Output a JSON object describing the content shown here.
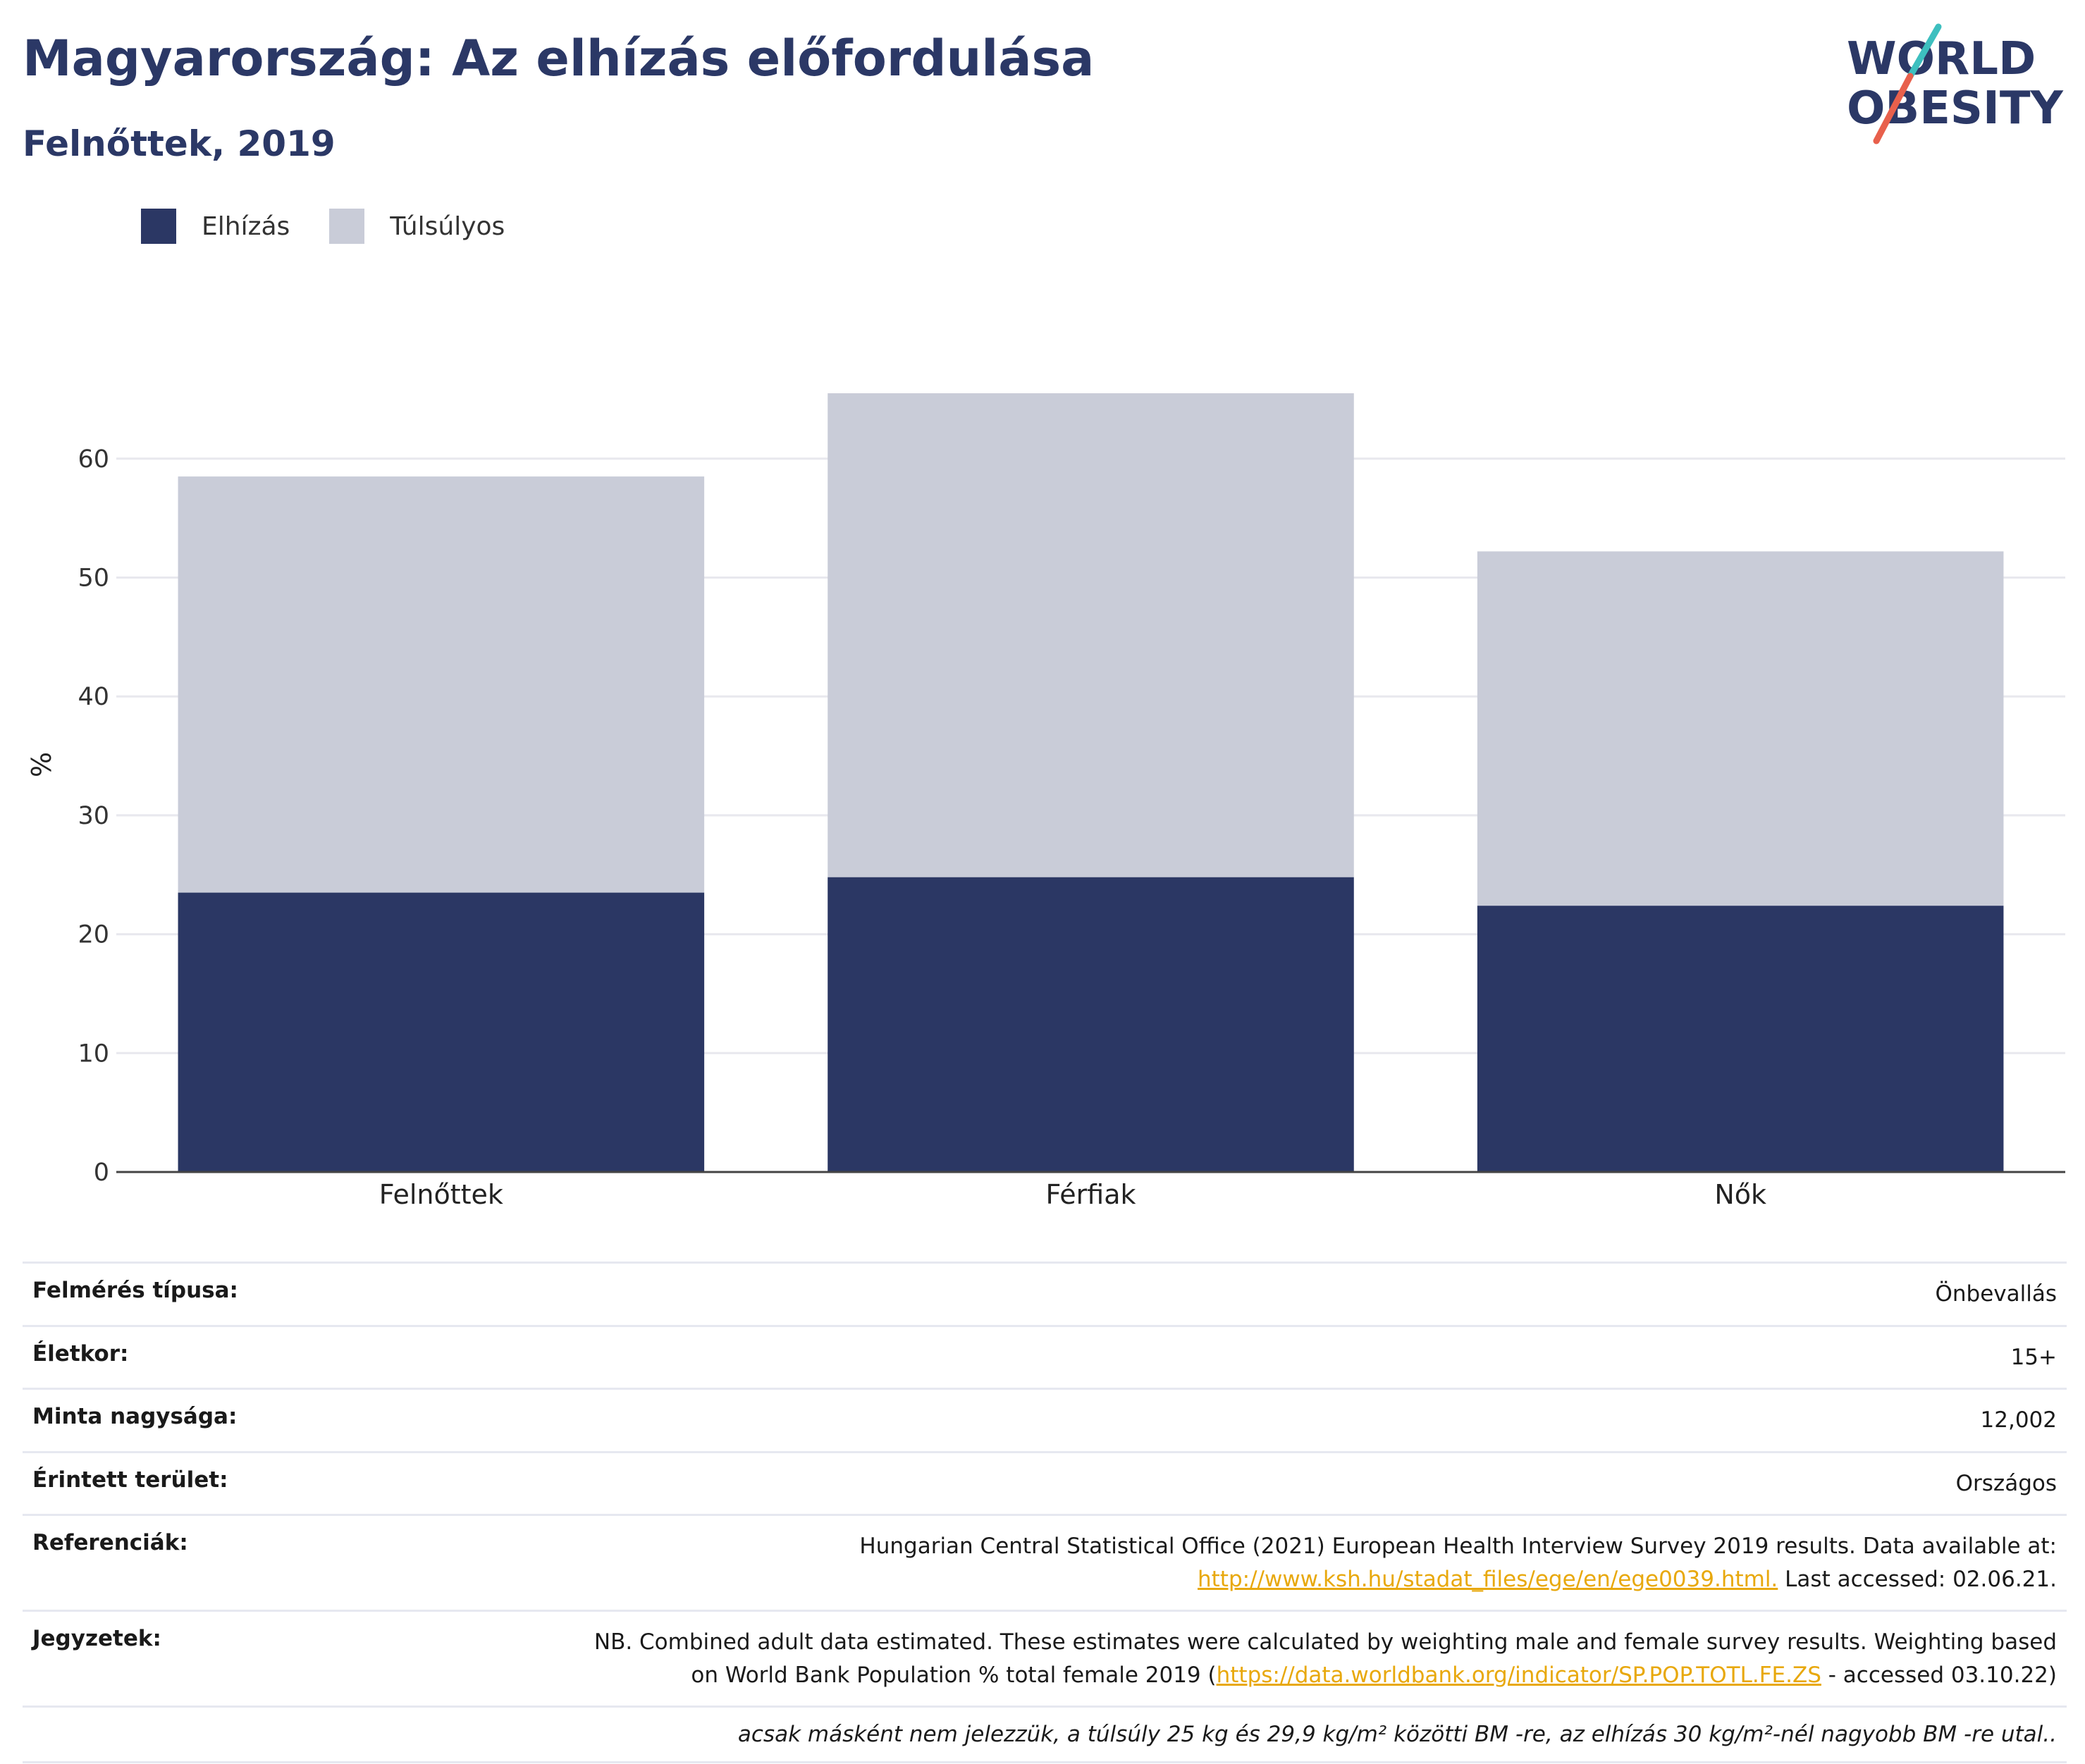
{
  "header": {
    "title": "Magyarország: Az elhízás előfordulása",
    "subtitle": "Felnőttek, 2019",
    "logo_text_line1": "WORLD",
    "logo_text_line2": "OBESITY"
  },
  "legend": [
    {
      "label": "Elhízás",
      "color": "#2b3764"
    },
    {
      "label": "Túlsúlyos",
      "color": "#c9ccd8"
    }
  ],
  "chart_data": {
    "type": "bar",
    "stacked": true,
    "categories": [
      "Felnőttek",
      "Férfiak",
      "Nők"
    ],
    "series": [
      {
        "name": "Elhízás",
        "values": [
          23.5,
          24.8,
          22.4
        ],
        "color": "#2b3764"
      },
      {
        "name": "Túlsúlyos",
        "values": [
          35.0,
          40.7,
          29.8
        ],
        "color": "#c9ccd8"
      }
    ],
    "ylabel": "%",
    "yticks": [
      0,
      10,
      20,
      30,
      40,
      50,
      60
    ],
    "ylim": [
      0,
      70
    ],
    "grid": true,
    "legend_position": "top-left"
  },
  "meta": {
    "survey_type": {
      "label": "Felmérés típusa:",
      "value": "Önbevallás"
    },
    "age": {
      "label": "Életkor:",
      "value": "15+"
    },
    "sample_size": {
      "label": "Minta nagysága:",
      "value": "12,002"
    },
    "area": {
      "label": "Érintett terület:",
      "value": "Országos"
    },
    "references": {
      "label": "Referenciák:",
      "text1": "Hungarian Central Statistical Office (2021) European Health Interview Survey 2019 results. Data available at:",
      "link": "http://www.ksh.hu/stadat_files/ege/en/ege0039.html.",
      "text2": " Last accessed: 02.06.21."
    },
    "notes": {
      "label": "Jegyzetek:",
      "text1": "NB. Combined adult data estimated. These estimates were calculated by weighting male and female survey results. Weighting based",
      "text2a": "on World Bank Population % total female 2019 (",
      "link": "https://data.worldbank.org/indicator/SP.POP.TOTL.FE.ZS",
      "text2b": " - accessed 03.10.22)"
    },
    "footnote": "acsak másként nem jelezzük, a túlsúly 25 kg és 29,9 kg/m² közötti BM -re, az elhízás 30 kg/m²-nél nagyobb BM -re utal.."
  },
  "colors": {
    "title": "#2b3866",
    "obesity": "#2b3764",
    "overweight": "#c9ccd8",
    "link": "#e8a80c",
    "logo_teal": "#3dbfbf",
    "logo_red": "#e8604c"
  }
}
